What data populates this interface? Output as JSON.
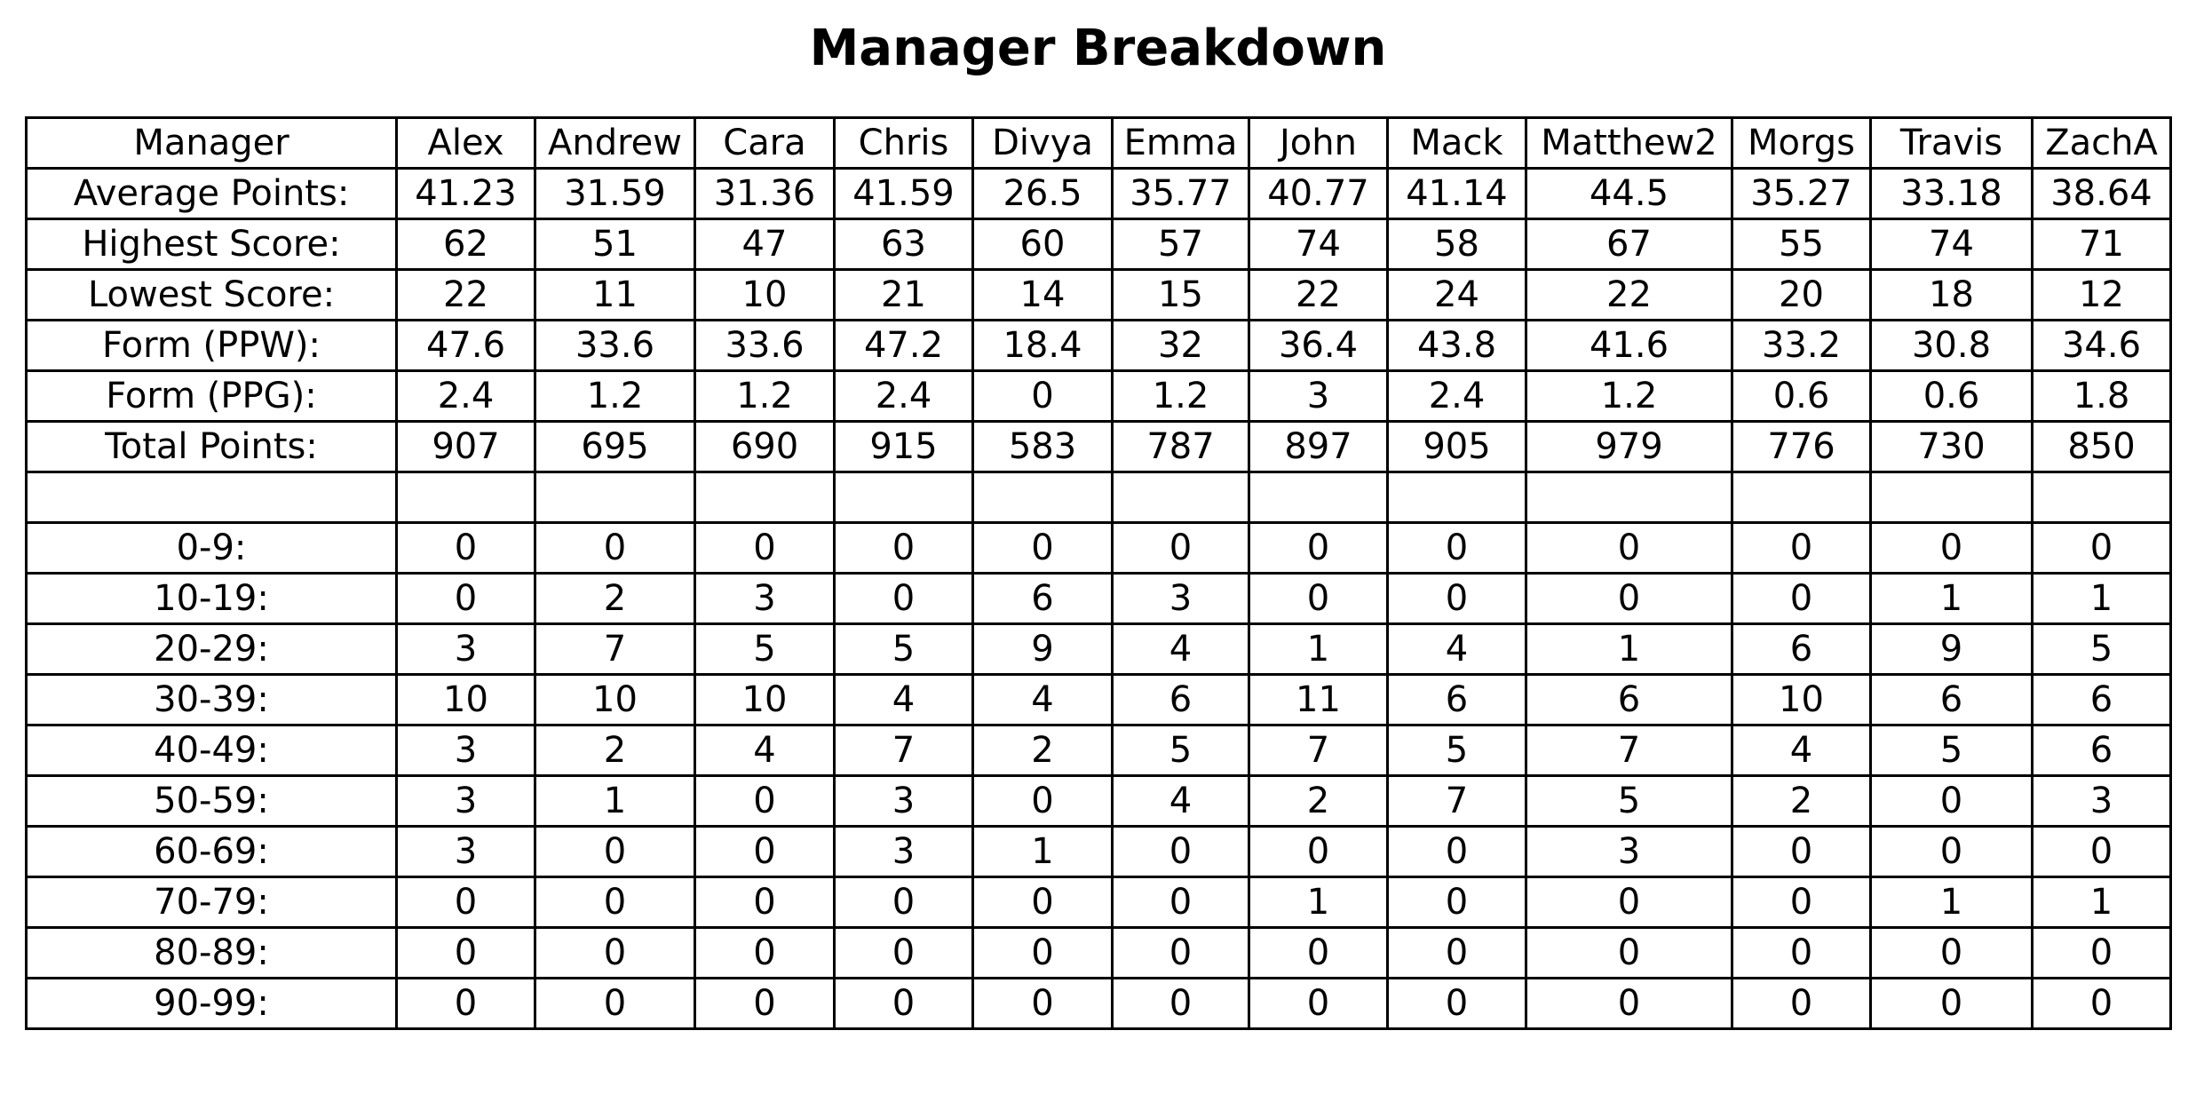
{
  "title": "Manager Breakdown",
  "table": {
    "header": [
      "Manager",
      "Alex",
      "Andrew",
      "Cara",
      "Chris",
      "Divya",
      "Emma",
      "John",
      "Mack",
      "Matthew2",
      "Morgs",
      "Travis",
      "ZachA"
    ],
    "sections": [
      [
        [
          "Average Points:",
          41.23,
          31.59,
          31.36,
          41.59,
          26.5,
          35.77,
          40.77,
          41.14,
          44.5,
          35.27,
          33.18,
          38.64
        ],
        [
          "Highest Score:",
          62,
          51,
          47,
          63,
          60,
          57,
          74,
          58,
          67,
          55,
          74,
          71
        ],
        [
          "Lowest Score:",
          22,
          11,
          10,
          21,
          14,
          15,
          22,
          24,
          22,
          20,
          18,
          12
        ],
        [
          "Form (PPW):",
          47.6,
          33.6,
          33.6,
          47.2,
          18.4,
          32,
          36.4,
          43.8,
          41.6,
          33.2,
          30.8,
          34.6
        ],
        [
          "Form (PPG):",
          2.4,
          1.2,
          1.2,
          2.4,
          0,
          1.2,
          3,
          2.4,
          1.2,
          0.6,
          0.6,
          1.8
        ],
        [
          "Total Points:",
          907,
          695,
          690,
          915,
          583,
          787,
          897,
          905,
          979,
          776,
          730,
          850
        ]
      ],
      [
        [
          "0-9:",
          0,
          0,
          0,
          0,
          0,
          0,
          0,
          0,
          0,
          0,
          0,
          0
        ],
        [
          "10-19:",
          0,
          2,
          3,
          0,
          6,
          3,
          0,
          0,
          0,
          0,
          1,
          1
        ],
        [
          "20-29:",
          3,
          7,
          5,
          5,
          9,
          4,
          1,
          4,
          1,
          6,
          9,
          5
        ],
        [
          "30-39:",
          10,
          10,
          10,
          4,
          4,
          6,
          11,
          6,
          6,
          10,
          6,
          6
        ],
        [
          "40-49:",
          3,
          2,
          4,
          7,
          2,
          5,
          7,
          5,
          7,
          4,
          5,
          6
        ],
        [
          "50-59:",
          3,
          1,
          0,
          3,
          0,
          4,
          2,
          7,
          5,
          2,
          0,
          3
        ],
        [
          "60-69:",
          3,
          0,
          0,
          3,
          1,
          0,
          0,
          0,
          3,
          0,
          0,
          0
        ],
        [
          "70-79:",
          0,
          0,
          0,
          0,
          0,
          0,
          1,
          0,
          0,
          0,
          1,
          1
        ],
        [
          "80-89:",
          0,
          0,
          0,
          0,
          0,
          0,
          0,
          0,
          0,
          0,
          0,
          0
        ],
        [
          "90-99:",
          0,
          0,
          0,
          0,
          0,
          0,
          0,
          0,
          0,
          0,
          0,
          0
        ]
      ]
    ]
  }
}
